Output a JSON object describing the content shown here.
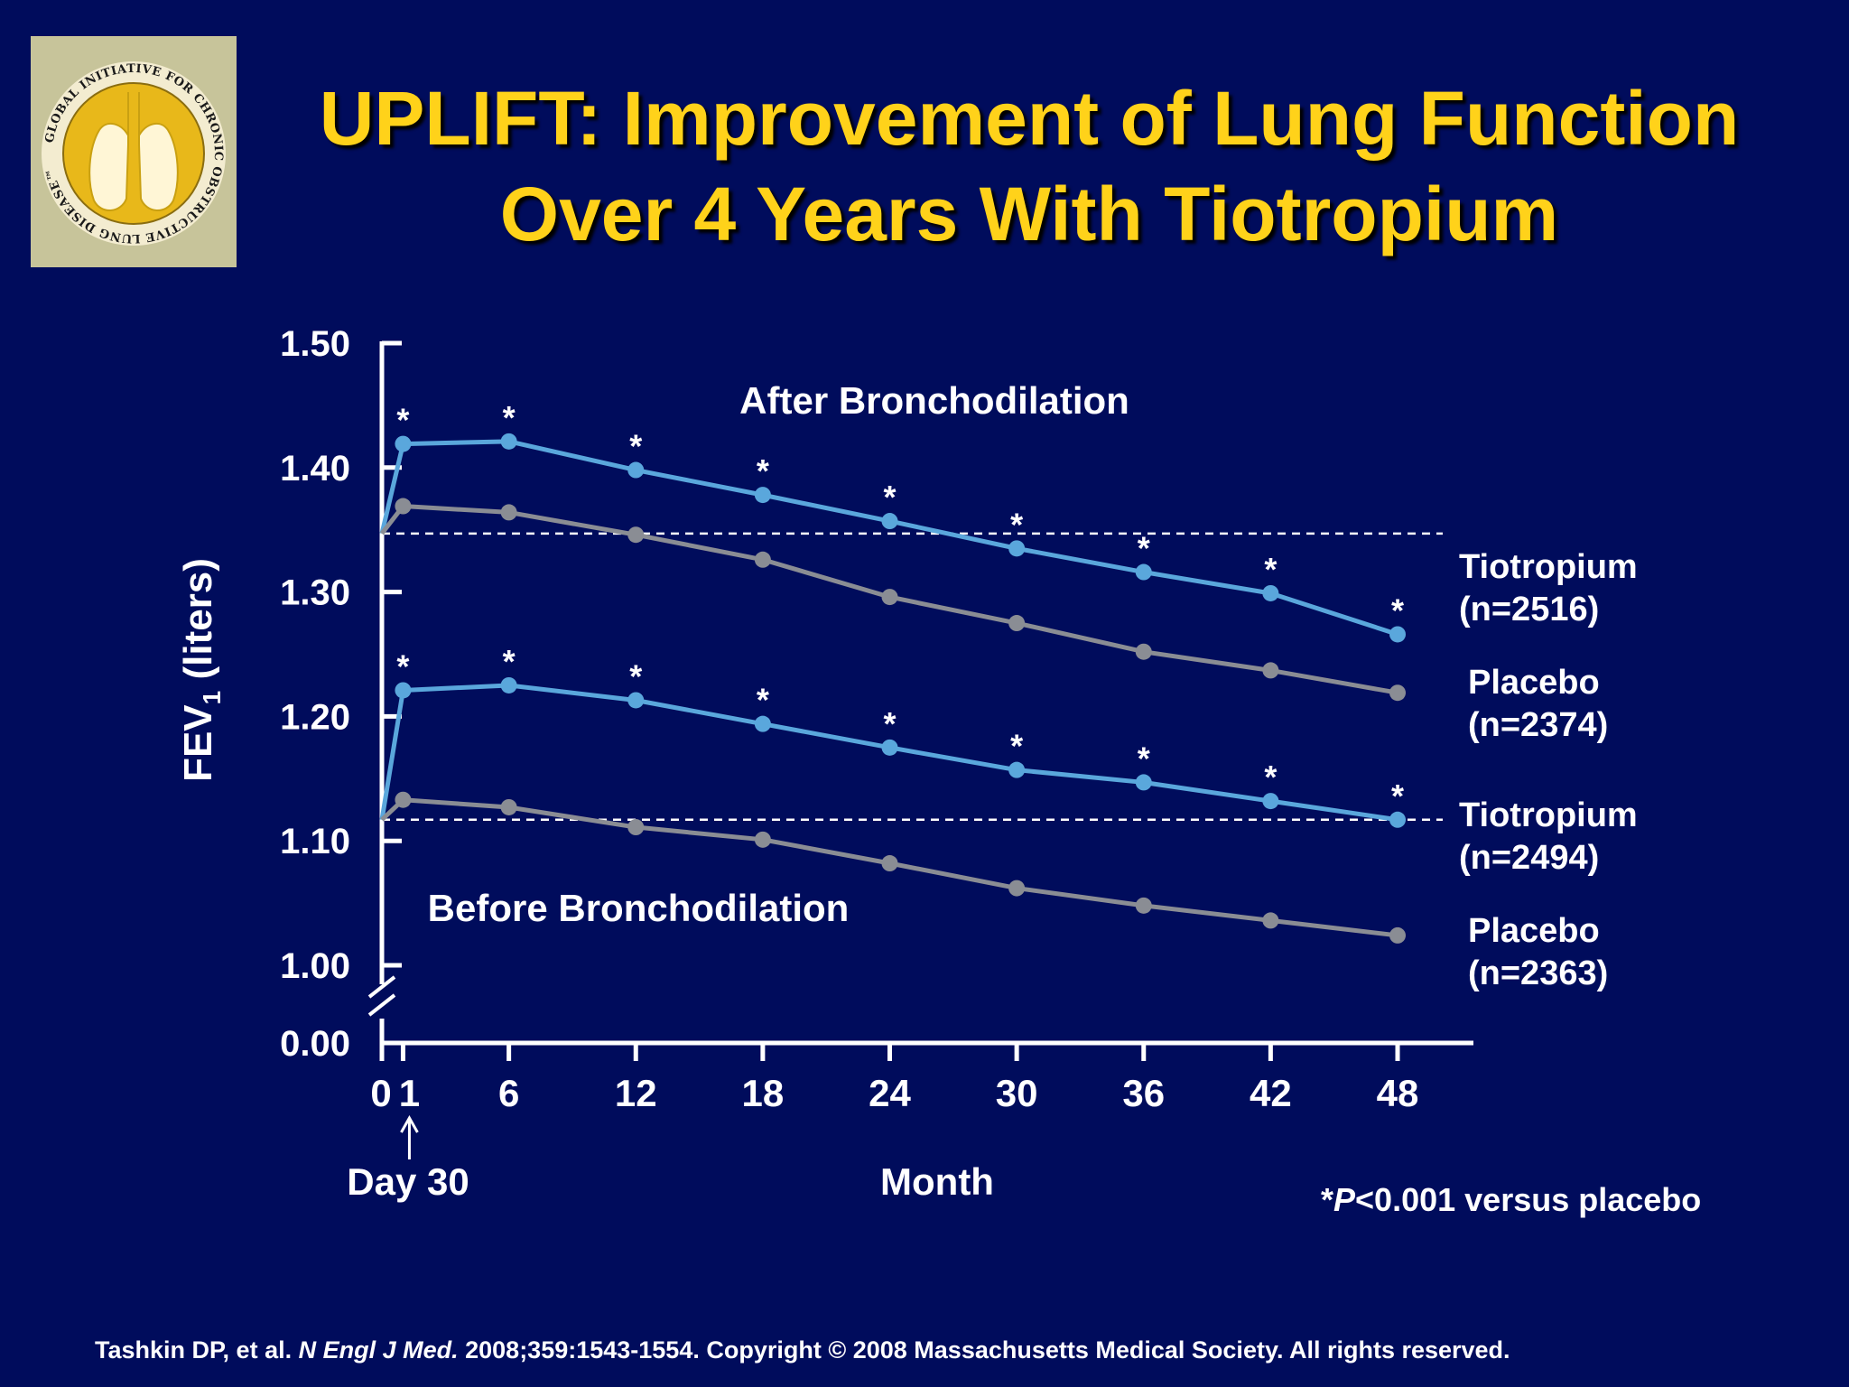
{
  "slide": {
    "title_line1": "UPLIFT: Improvement of Lung Function",
    "title_line2": "Over 4 Years With Tiotropium",
    "logo_text": "GLOBAL INITIATIVE FOR CHRONIC OBSTRUCTIVE LUNG DISEASE™",
    "footnote_star": "*",
    "footnote_p": "P",
    "footnote_rest": "<0.001 versus placebo",
    "citation_authors": "Tashkin DP, et al. ",
    "citation_journal": "N Engl J Med.",
    "citation_rest": " 2008;359:1543-1554. Copyright © 2008 Massachusetts Medical Society. All rights reserved."
  },
  "colors": {
    "background": "#000c5c",
    "title": "#ffd21a",
    "tiotropium": "#5aa7dc",
    "placebo": "#8a8d94",
    "axis": "#ffffff",
    "logo_gold": "#e8b81a",
    "logo_frame": "#c7c49a"
  },
  "chart_data": {
    "type": "line",
    "xlabel": "Month",
    "ylabel": "FEV",
    "ylabel_sub": "1",
    "ylabel_unit": " (liters)",
    "y_break": true,
    "ylim": [
      1.0,
      1.5
    ],
    "y_ticks": [
      1.0,
      1.1,
      1.2,
      1.3,
      1.4,
      1.5
    ],
    "y_tick_labels": [
      "1.00",
      "1.10",
      "1.20",
      "1.30",
      "1.40",
      "1.50"
    ],
    "y_zero_label": "0.00",
    "x_ticks": [
      0,
      1,
      6,
      12,
      18,
      24,
      30,
      36,
      42,
      48
    ],
    "x_tick_labels": [
      "0",
      "1",
      "6",
      "12",
      "18",
      "24",
      "30",
      "36",
      "42",
      "48"
    ],
    "day30_label": "Day 30",
    "significance_marker": "*",
    "x": [
      1,
      6,
      12,
      18,
      24,
      30,
      36,
      42,
      48
    ],
    "annotations": {
      "after": "After Bronchodilation",
      "before": "Before Bronchodilation"
    },
    "baselines": [
      {
        "group": "after",
        "value": 1.347
      },
      {
        "group": "before",
        "value": 1.117
      }
    ],
    "series": [
      {
        "name": "Tiotropium",
        "n": "(n=2516)",
        "group": "after",
        "drug": "tiotropium",
        "baseline": 1.347,
        "values": [
          1.419,
          1.421,
          1.398,
          1.378,
          1.357,
          1.335,
          1.316,
          1.299,
          1.266
        ],
        "significant": true
      },
      {
        "name": "Placebo",
        "n": "(n=2374)",
        "group": "after",
        "drug": "placebo",
        "baseline": 1.347,
        "values": [
          1.369,
          1.364,
          1.346,
          1.326,
          1.296,
          1.275,
          1.252,
          1.237,
          1.219
        ],
        "significant": false
      },
      {
        "name": "Tiotropium",
        "n": "(n=2494)",
        "group": "before",
        "drug": "tiotropium",
        "baseline": 1.117,
        "values": [
          1.221,
          1.225,
          1.213,
          1.194,
          1.175,
          1.157,
          1.147,
          1.132,
          1.117
        ],
        "significant": true
      },
      {
        "name": "Placebo",
        "n": "(n=2363)",
        "group": "before",
        "drug": "placebo",
        "baseline": 1.117,
        "values": [
          1.133,
          1.127,
          1.111,
          1.101,
          1.082,
          1.062,
          1.048,
          1.036,
          1.024
        ],
        "significant": false
      }
    ]
  }
}
